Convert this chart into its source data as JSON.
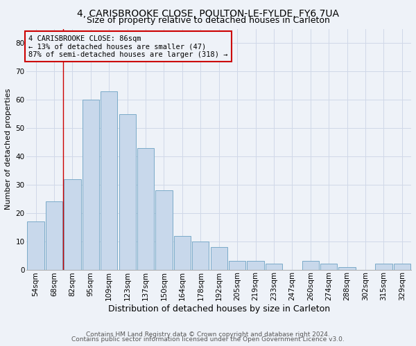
{
  "title1": "4, CARISBROOKE CLOSE, POULTON-LE-FYLDE, FY6 7UA",
  "title2": "Size of property relative to detached houses in Carleton",
  "xlabel": "Distribution of detached houses by size in Carleton",
  "ylabel": "Number of detached properties",
  "categories": [
    "54sqm",
    "68sqm",
    "82sqm",
    "95sqm",
    "109sqm",
    "123sqm",
    "137sqm",
    "150sqm",
    "164sqm",
    "178sqm",
    "192sqm",
    "205sqm",
    "219sqm",
    "233sqm",
    "247sqm",
    "260sqm",
    "274sqm",
    "288sqm",
    "302sqm",
    "315sqm",
    "329sqm"
  ],
  "values": [
    17,
    24,
    32,
    60,
    63,
    55,
    43,
    28,
    12,
    10,
    8,
    3,
    3,
    2,
    0,
    3,
    2,
    1,
    0,
    2,
    2
  ],
  "bar_color": "#c8d8eb",
  "bar_edge_color": "#7aaac8",
  "grid_color": "#d0d8e8",
  "annotation_box_color": "#cc0000",
  "vline_color": "#cc0000",
  "vline_x": 1.5,
  "annotation_text": "4 CARISBROOKE CLOSE: 86sqm\n← 13% of detached houses are smaller (47)\n87% of semi-detached houses are larger (318) →",
  "footer1": "Contains HM Land Registry data © Crown copyright and database right 2024.",
  "footer2": "Contains public sector information licensed under the Open Government Licence v3.0.",
  "ylim": [
    0,
    85
  ],
  "yticks": [
    0,
    10,
    20,
    30,
    40,
    50,
    60,
    70,
    80
  ],
  "bg_color": "#eef2f8",
  "plot_bg_color": "#eef2f8",
  "title1_fontsize": 10,
  "title2_fontsize": 9,
  "xlabel_fontsize": 9,
  "ylabel_fontsize": 8,
  "tick_fontsize": 7.5,
  "annotation_fontsize": 7.5,
  "footer_fontsize": 6.5
}
